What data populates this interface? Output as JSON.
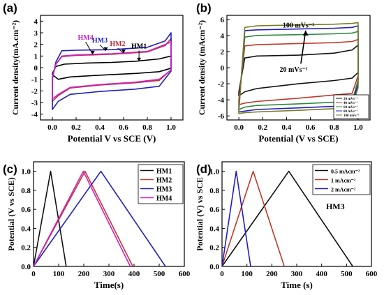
{
  "panels": {
    "a": {
      "letter": "(a)"
    },
    "b": {
      "letter": "(b)"
    },
    "c": {
      "letter": "(c)"
    },
    "d": {
      "letter": "(d)"
    }
  },
  "chart_data": [
    {
      "id": "a",
      "type": "line",
      "xlabel": "Potential V vs SCE (V)",
      "ylabel": "Current density(mA.cm⁻²)",
      "xlim": [
        -0.1,
        1.1
      ],
      "ylim": [
        -4.5,
        4.5
      ],
      "xticks": [
        "0.0",
        "0.2",
        "0.4",
        "0.6",
        "0.8",
        "1.0"
      ],
      "yticks": [
        "-4",
        "-3",
        "-2",
        "-1",
        "0",
        "1",
        "2",
        "3",
        "4"
      ],
      "annotations": [
        {
          "text": "HM4",
          "color": "#cc22cc",
          "x": 0.28,
          "y": 2.4,
          "arrow_to": [
            0.34,
            1.15
          ]
        },
        {
          "text": "HM3",
          "color": "#1f1fbf",
          "x": 0.4,
          "y": 2.15,
          "arrow_to": [
            0.45,
            1.45
          ]
        },
        {
          "text": "HM2",
          "color": "#c0303a",
          "x": 0.55,
          "y": 1.85,
          "arrow_to": [
            0.6,
            1.25
          ]
        },
        {
          "text": "HM1",
          "color": "#000000",
          "x": 0.73,
          "y": 1.65,
          "arrow_to": [
            0.73,
            0.55
          ]
        }
      ],
      "series": [
        {
          "name": "HM1",
          "color": "#000000",
          "upper": [
            [
              0.0,
              -0.5
            ],
            [
              0.03,
              0.1
            ],
            [
              0.1,
              0.3
            ],
            [
              0.3,
              0.4
            ],
            [
              0.5,
              0.45
            ],
            [
              0.7,
              0.55
            ],
            [
              0.9,
              0.75
            ],
            [
              1.0,
              1.0
            ]
          ],
          "lower": [
            [
              0.0,
              -0.6
            ],
            [
              0.05,
              -1.0
            ],
            [
              0.15,
              -0.8
            ],
            [
              0.4,
              -0.65
            ],
            [
              0.7,
              -0.5
            ],
            [
              0.9,
              -0.35
            ],
            [
              1.0,
              -0.05
            ]
          ]
        },
        {
          "name": "HM2",
          "color": "#c0303a",
          "upper": [
            [
              0.0,
              -0.8
            ],
            [
              0.03,
              0.3
            ],
            [
              0.08,
              0.95
            ],
            [
              0.2,
              1.05
            ],
            [
              0.5,
              1.15
            ],
            [
              0.8,
              1.35
            ],
            [
              0.95,
              1.9
            ],
            [
              1.0,
              2.5
            ]
          ],
          "lower": [
            [
              0.0,
              -2.9
            ],
            [
              0.05,
              -2.4
            ],
            [
              0.15,
              -1.75
            ],
            [
              0.4,
              -1.5
            ],
            [
              0.7,
              -1.3
            ],
            [
              0.9,
              -1.1
            ],
            [
              1.0,
              -0.2
            ]
          ]
        },
        {
          "name": "HM3",
          "color": "#1f1fbf",
          "upper": [
            [
              0.0,
              -1.0
            ],
            [
              0.03,
              0.5
            ],
            [
              0.08,
              1.45
            ],
            [
              0.2,
              1.5
            ],
            [
              0.5,
              1.55
            ],
            [
              0.8,
              1.75
            ],
            [
              0.95,
              2.3
            ],
            [
              1.0,
              3.0
            ]
          ],
          "lower": [
            [
              0.0,
              -3.6
            ],
            [
              0.05,
              -2.9
            ],
            [
              0.15,
              -2.3
            ],
            [
              0.4,
              -2.05
            ],
            [
              0.7,
              -1.85
            ],
            [
              0.9,
              -1.6
            ],
            [
              1.0,
              -0.3
            ]
          ]
        },
        {
          "name": "HM4",
          "color": "#cc22cc",
          "upper": [
            [
              0.0,
              -0.8
            ],
            [
              0.03,
              0.3
            ],
            [
              0.08,
              1.0
            ],
            [
              0.2,
              1.1
            ],
            [
              0.5,
              1.2
            ],
            [
              0.8,
              1.4
            ],
            [
              0.95,
              2.0
            ],
            [
              1.0,
              2.2
            ]
          ],
          "lower": [
            [
              0.0,
              -2.7
            ],
            [
              0.05,
              -2.3
            ],
            [
              0.15,
              -1.7
            ],
            [
              0.4,
              -1.45
            ],
            [
              0.7,
              -1.25
            ],
            [
              0.9,
              -1.0
            ],
            [
              1.0,
              -0.2
            ]
          ]
        }
      ]
    },
    {
      "id": "b",
      "type": "line",
      "xlabel": "Potential (V vs SCE)",
      "ylabel": "Current density (mAcm⁻²)",
      "xlim": [
        -0.1,
        1.1
      ],
      "ylim": [
        -6.5,
        6.5
      ],
      "xticks": [
        "0.0",
        "0.2",
        "0.4",
        "0.6",
        "0.8",
        "1.0"
      ],
      "yticks": [
        "-6",
        "-4",
        "-2",
        "0",
        "2",
        "4",
        "6"
      ],
      "annotations": [
        {
          "text": "100 mVs⁻¹",
          "x": 0.5,
          "y": 5.0
        },
        {
          "text": "20 mVs⁻¹",
          "x": 0.46,
          "y": -0.5
        }
      ],
      "arrow": {
        "from": [
          0.52,
          0.5
        ],
        "to": [
          0.56,
          4.6
        ]
      },
      "legend_placement": "bottom-right",
      "series": [
        {
          "name": "20 mVs⁻¹",
          "color": "#111111",
          "upper": [
            [
              0.0,
              -3.0
            ],
            [
              0.05,
              1.2
            ],
            [
              0.15,
              1.45
            ],
            [
              0.5,
              1.55
            ],
            [
              0.8,
              1.8
            ],
            [
              0.95,
              2.2
            ],
            [
              1.0,
              2.8
            ]
          ],
          "lower": [
            [
              0.0,
              -3.5
            ],
            [
              0.05,
              -3.0
            ],
            [
              0.15,
              -2.6
            ],
            [
              0.5,
              -2.0
            ],
            [
              0.8,
              -1.6
            ],
            [
              0.95,
              -1.3
            ],
            [
              1.0,
              -0.6
            ]
          ]
        },
        {
          "name": "40 mVs⁻¹",
          "color": "#c0392b",
          "upper": [
            [
              0.0,
              -4.0
            ],
            [
              0.05,
              2.7
            ],
            [
              0.15,
              2.85
            ],
            [
              0.5,
              3.0
            ],
            [
              0.8,
              3.1
            ],
            [
              0.95,
              3.25
            ],
            [
              1.0,
              3.5
            ]
          ],
          "lower": [
            [
              0.0,
              -4.6
            ],
            [
              0.05,
              -4.4
            ],
            [
              0.15,
              -4.2
            ],
            [
              0.5,
              -3.8
            ],
            [
              0.8,
              -3.4
            ],
            [
              0.95,
              -3.2
            ],
            [
              1.0,
              -1.0
            ]
          ]
        },
        {
          "name": "60 mVs⁻¹",
          "color": "#2d8a3e",
          "upper": [
            [
              0.0,
              -4.8
            ],
            [
              0.05,
              3.8
            ],
            [
              0.15,
              4.0
            ],
            [
              0.5,
              4.1
            ],
            [
              0.8,
              4.2
            ],
            [
              0.95,
              4.3
            ],
            [
              1.0,
              4.5
            ]
          ],
          "lower": [
            [
              0.0,
              -5.2
            ],
            [
              0.05,
              -4.9
            ],
            [
              0.15,
              -4.7
            ],
            [
              0.5,
              -4.5
            ],
            [
              0.8,
              -4.3
            ],
            [
              0.95,
              -4.2
            ],
            [
              1.0,
              -1.5
            ]
          ]
        },
        {
          "name": "80 mVs⁻¹",
          "color": "#1f1fbf",
          "upper": [
            [
              0.0,
              -5.2
            ],
            [
              0.05,
              4.6
            ],
            [
              0.15,
              4.7
            ],
            [
              0.5,
              4.8
            ],
            [
              0.8,
              4.9
            ],
            [
              0.95,
              5.0
            ],
            [
              1.0,
              5.2
            ]
          ],
          "lower": [
            [
              0.0,
              -5.5
            ],
            [
              0.05,
              -5.4
            ],
            [
              0.15,
              -5.2
            ],
            [
              0.5,
              -5.0
            ],
            [
              0.8,
              -4.8
            ],
            [
              0.95,
              -4.6
            ],
            [
              1.0,
              -2.0
            ]
          ]
        },
        {
          "name": "100 mVs⁻¹",
          "color": "#7a7a2a",
          "upper": [
            [
              0.0,
              -5.5
            ],
            [
              0.05,
              5.0
            ],
            [
              0.15,
              5.2
            ],
            [
              0.5,
              5.3
            ],
            [
              0.8,
              5.4
            ],
            [
              0.95,
              5.5
            ],
            [
              1.0,
              5.6
            ]
          ],
          "lower": [
            [
              0.0,
              -5.7
            ],
            [
              0.05,
              -5.6
            ],
            [
              0.15,
              -5.5
            ],
            [
              0.5,
              -5.3
            ],
            [
              0.8,
              -5.1
            ],
            [
              0.95,
              -4.9
            ],
            [
              1.0,
              -2.5
            ]
          ]
        }
      ]
    },
    {
      "id": "c",
      "type": "line",
      "xlabel": "Time(s)",
      "ylabel": "Potential (V vs SCE)",
      "xlim": [
        0,
        600
      ],
      "ylim": [
        0,
        1.1
      ],
      "xticks": [
        "0",
        "100",
        "200",
        "300",
        "400",
        "500",
        "600"
      ],
      "yticks": [
        "0.0",
        "0.2",
        "0.4",
        "0.6",
        "0.8",
        "1.0"
      ],
      "legend_placement": "top-right",
      "series": [
        {
          "name": "HM1",
          "color": "#111111",
          "points": [
            [
              0,
              0
            ],
            [
              68,
              1.0
            ],
            [
              130,
              0
            ]
          ]
        },
        {
          "name": "HM2",
          "color": "#c0392b",
          "points": [
            [
              0,
              0
            ],
            [
              205,
              1.0
            ],
            [
              395,
              0
            ]
          ]
        },
        {
          "name": "HM3",
          "color": "#1f1fbf",
          "points": [
            [
              0,
              0
            ],
            [
              268,
              1.0
            ],
            [
              525,
              0
            ]
          ]
        },
        {
          "name": "HM4",
          "color": "#cc22cc",
          "points": [
            [
              0,
              0
            ],
            [
              198,
              1.0
            ],
            [
              385,
              0
            ]
          ]
        }
      ]
    },
    {
      "id": "d",
      "type": "line",
      "xlabel": "Time (s)",
      "ylabel": "Potential (V) vs SCE",
      "xlim": [
        0,
        600
      ],
      "ylim": [
        0,
        1.1
      ],
      "xticks": [
        "0",
        "100",
        "200",
        "300",
        "400",
        "500",
        "600"
      ],
      "yticks": [
        "0.0",
        "0.2",
        "0.4",
        "0.6",
        "0.8",
        "1.0"
      ],
      "annotations": [
        {
          "text": "HM3",
          "x": 455,
          "y": 0.6
        }
      ],
      "legend_placement": "top-right",
      "series": [
        {
          "name": "0.5 mAcm⁻²",
          "color": "#111111",
          "points": [
            [
              0,
              0
            ],
            [
              268,
              1.0
            ],
            [
              525,
              0
            ]
          ]
        },
        {
          "name": "1 mAcm⁻²",
          "color": "#c0392b",
          "points": [
            [
              0,
              0
            ],
            [
              125,
              1.0
            ],
            [
              250,
              0
            ]
          ]
        },
        {
          "name": "2 mAcm⁻²",
          "color": "#1f1fbf",
          "points": [
            [
              0,
              0
            ],
            [
              57,
              1.0
            ],
            [
              115,
              0
            ]
          ]
        }
      ]
    }
  ]
}
